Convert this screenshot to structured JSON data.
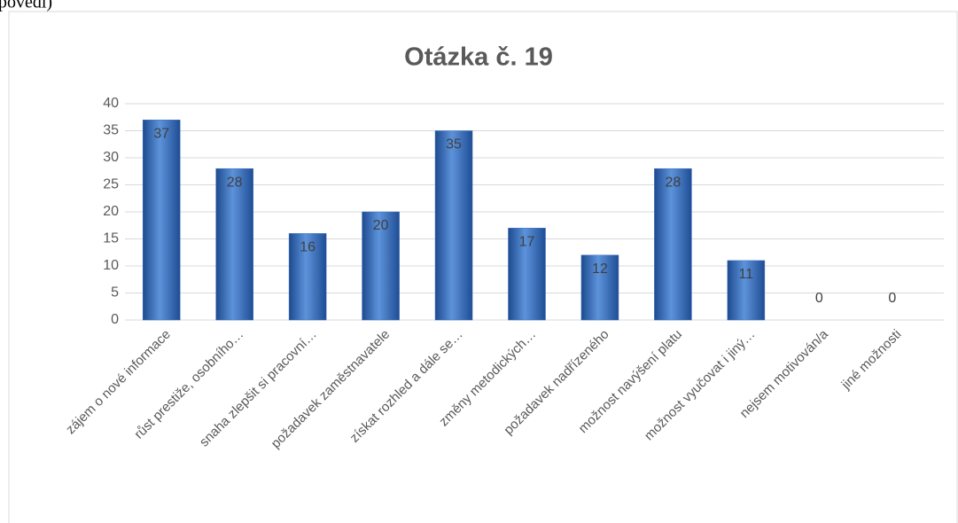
{
  "caption": "povědí)",
  "chart_data": {
    "type": "bar",
    "title": "Otázka č. 19",
    "categories": [
      "zájem o nové informace",
      "růst prestiže, osobního…",
      "snaha zlepšit si pracovní…",
      "požadavek zaměstnavatele",
      "získat rozhled a dále se…",
      "změny metodických…",
      "požadavek nadřízeného",
      "možnost navýšení platu",
      "možnost vyučovat i jiný…",
      "nejsem motivován/a",
      "jiné možnosti"
    ],
    "values": [
      37,
      28,
      16,
      20,
      35,
      17,
      12,
      28,
      11,
      0,
      0
    ],
    "color": "#3a6fbf",
    "ylim": [
      0,
      40
    ],
    "yticks": [
      0,
      5,
      10,
      15,
      20,
      25,
      30,
      35,
      40
    ],
    "grid": true
  }
}
